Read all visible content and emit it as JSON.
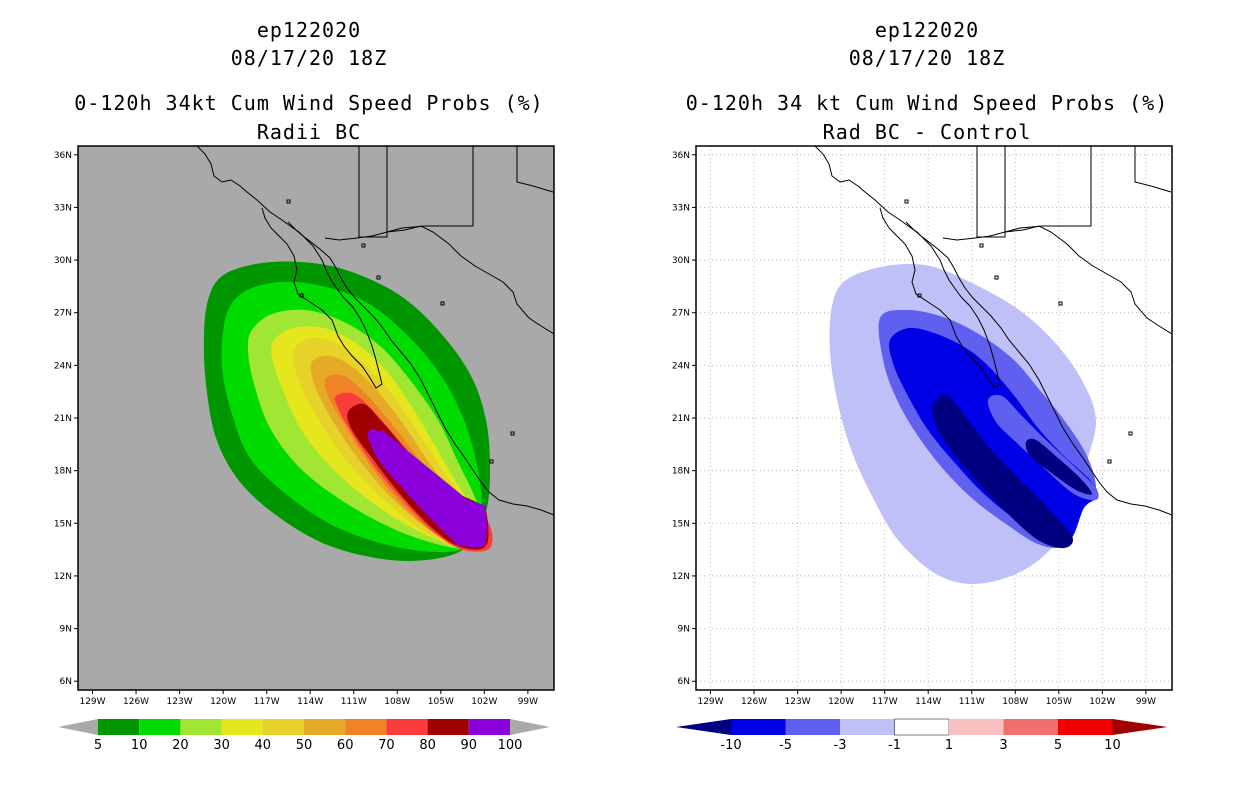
{
  "left": {
    "storm_id": "ep122020",
    "date": "08/17/20 18Z",
    "title": "0-120h 34kt Cum Wind Speed Probs (%)",
    "subtitle": "Radii BC",
    "colorbar": {
      "colors": [
        "#009600",
        "#00dc00",
        "#a0e632",
        "#e6e61e",
        "#e6d228",
        "#e6aa28",
        "#f08228",
        "#fa3c3c",
        "#a00000",
        "#8c00dc"
      ],
      "labels": [
        "5",
        "10",
        "20",
        "30",
        "40",
        "50",
        "60",
        "70",
        "80",
        "90",
        "100"
      ],
      "tri_color": "#a9a9a9"
    }
  },
  "right": {
    "storm_id": "ep122020",
    "date": "08/17/20 18Z",
    "title": "0-120h 34 kt Cum Wind Speed Probs (%)",
    "subtitle": "Rad BC - Control",
    "colorbar": {
      "colors": [
        "#0000e6",
        "#6060f0",
        "#c0c0f8",
        "#ffffff",
        "#f8c0c0",
        "#f07070",
        "#f00000"
      ],
      "labels": [
        "-10",
        "-5",
        "-3",
        "-1",
        "1",
        "3",
        "5",
        "10"
      ],
      "low_color": "#000080",
      "high_color": "#a00000"
    }
  },
  "axes": {
    "lat_labels": [
      "36N",
      "33N",
      "30N",
      "27N",
      "24N",
      "21N",
      "18N",
      "15N",
      "12N",
      "9N",
      "6N"
    ],
    "lon_labels": [
      "129W",
      "126W",
      "123W",
      "120W",
      "117W",
      "114W",
      "111W",
      "108W",
      "105W",
      "102W",
      "99W"
    ]
  },
  "map_colors": {
    "land_fill_left": "#a9a9a9",
    "coast": "#000000",
    "grid": "#b4b4b4"
  }
}
